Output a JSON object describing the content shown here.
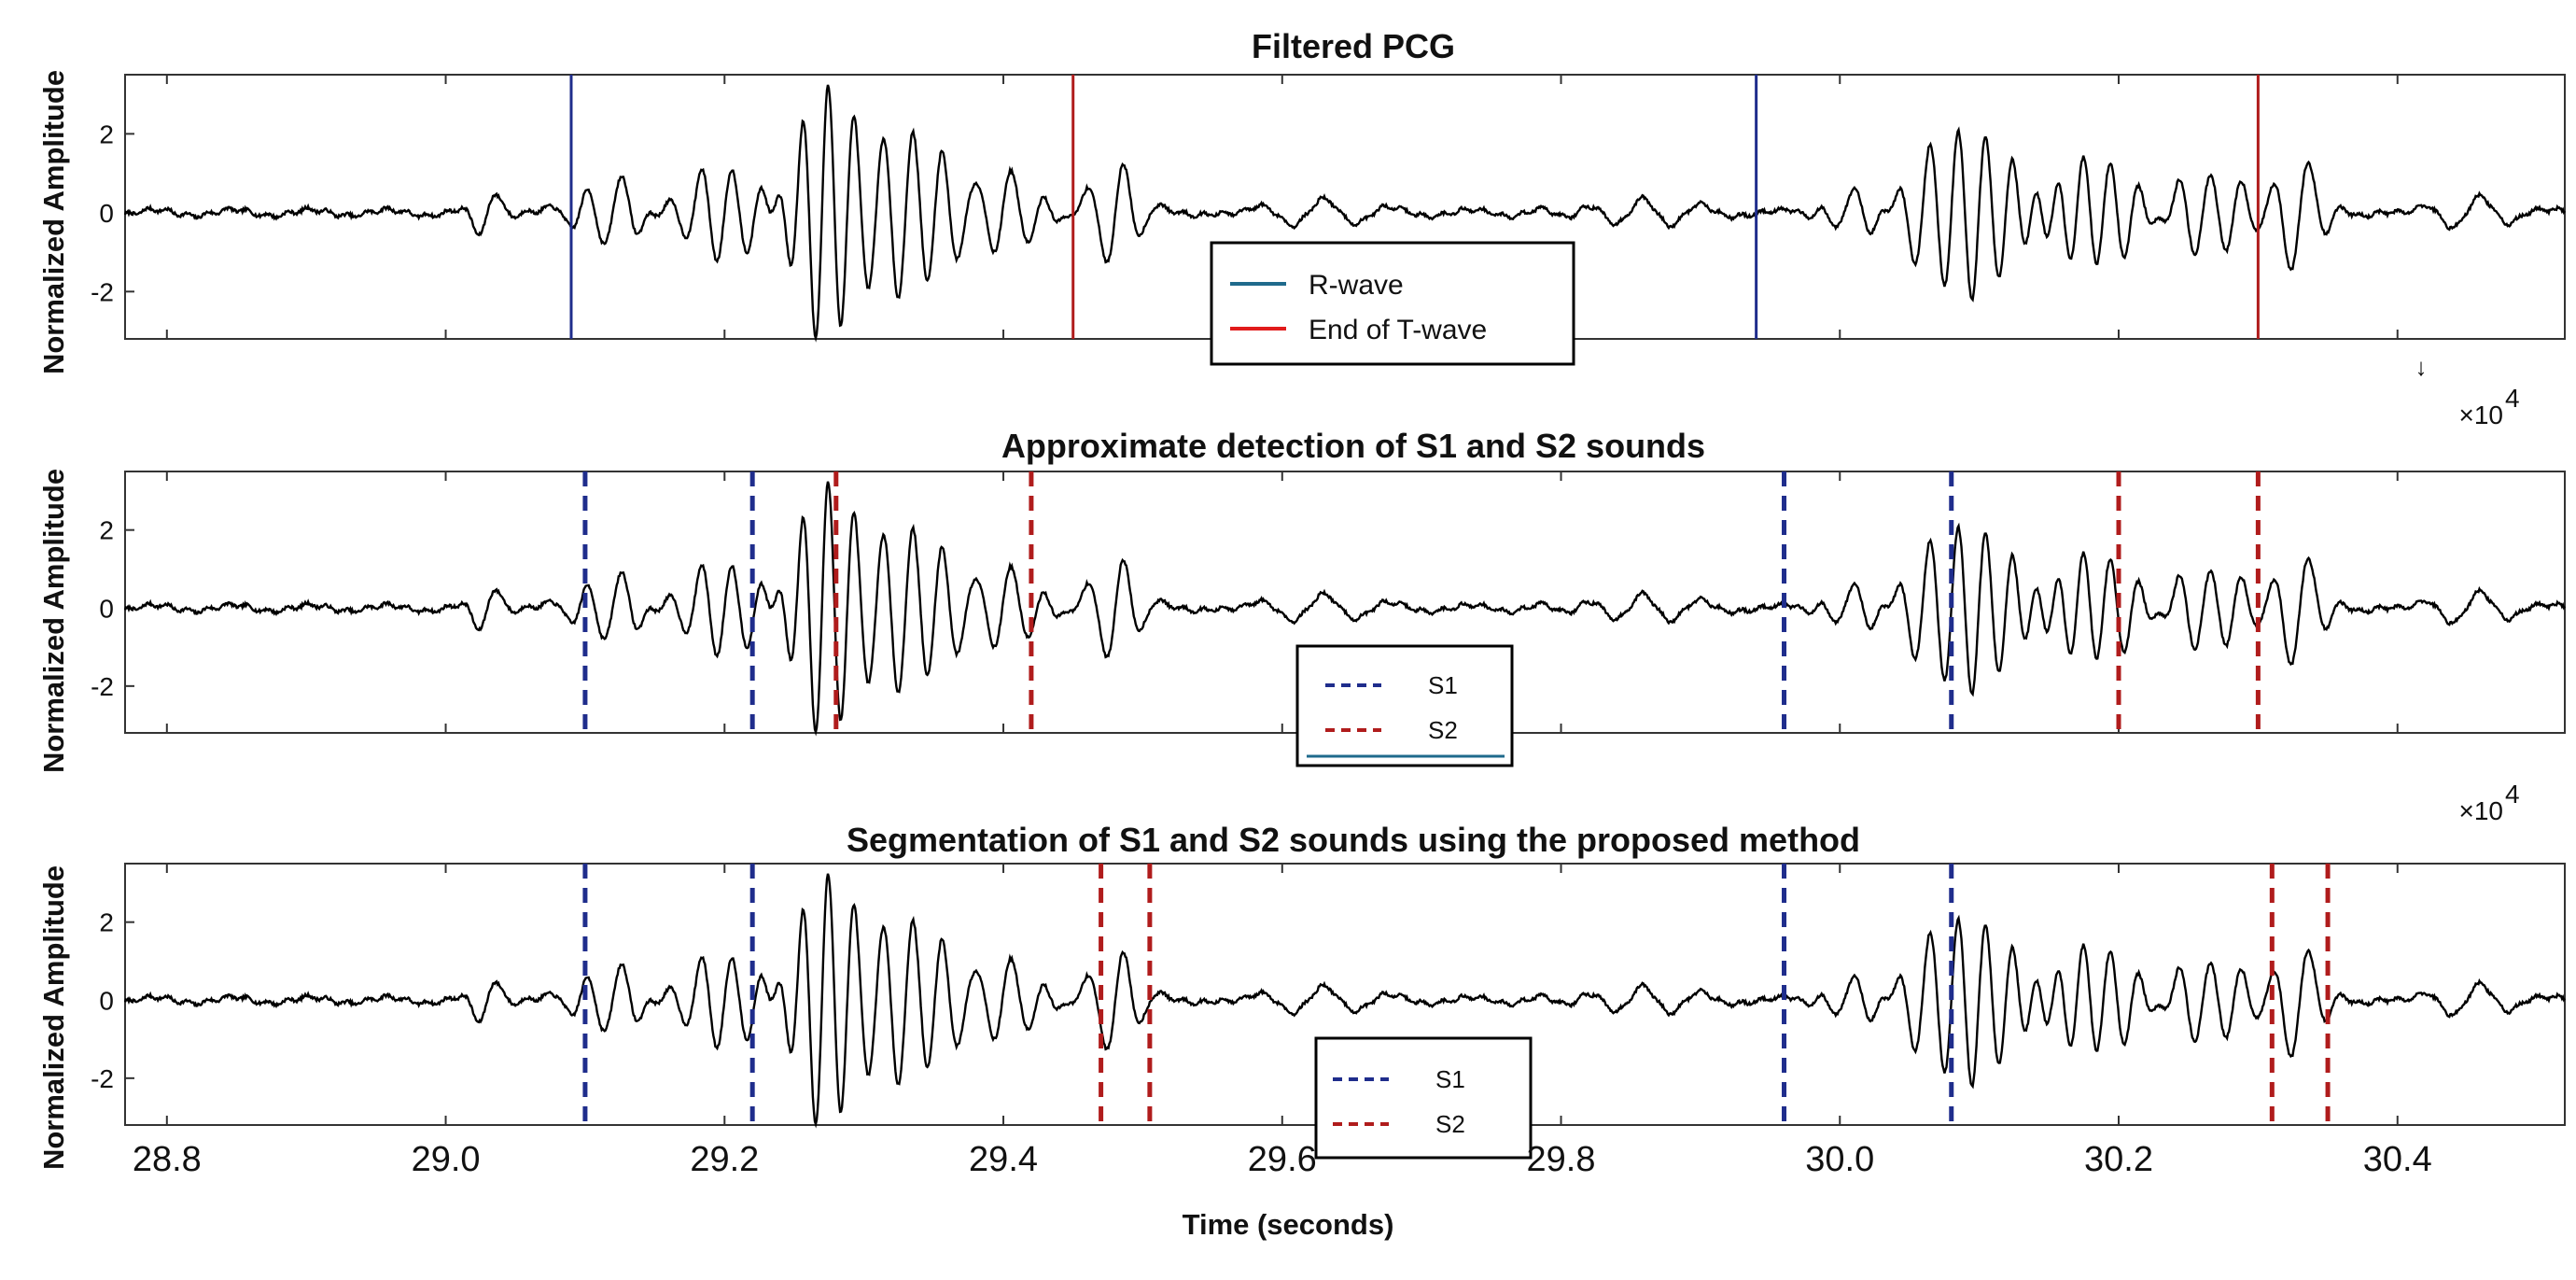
{
  "figure": {
    "xlabel": "Time (seconds)",
    "x_ticks": [
      "28.8",
      "29.0",
      "29.2",
      "29.4",
      "29.6",
      "29.8",
      "30.0",
      "30.2",
      "30.4"
    ],
    "y_ticks": [
      "2",
      "0",
      "-2"
    ],
    "exponent_base": "×10",
    "exponent_power": "4",
    "colors": {
      "blue": "#1f2d8c",
      "red": "#b01c1c",
      "trace": "#000000"
    }
  },
  "chart_data": [
    {
      "type": "line",
      "panel": "a",
      "title": "Filtered PCG",
      "ylabel": "Normalized Amplitude",
      "xlim": [
        28.77,
        30.52
      ],
      "ylim": [
        -3.2,
        3.5
      ],
      "series": [
        {
          "values_description_note": "",
          "x_range": [
            28.77,
            30.52
          ]
        }
      ],
      "markers": [
        {
          "name": "R-wave",
          "style": "solid",
          "color": "#1f2d8c",
          "x": [
            29.09,
            29.94
          ]
        },
        {
          "name": "End of T-wave",
          "style": "solid",
          "color": "#b01c1c",
          "x": [
            29.45,
            30.3
          ]
        }
      ],
      "legend": {
        "placement": "bottom-center",
        "entries": [
          "R-wave",
          "End of T-wave"
        ]
      }
    },
    {
      "type": "line",
      "panel": "b",
      "title": "Approximate detection of S1 and S2 sounds",
      "ylabel": "Normalized Amplitude",
      "xlim": [
        28.77,
        30.52
      ],
      "ylim": [
        -3.2,
        3.5
      ],
      "markers": [
        {
          "name": "S1",
          "style": "dashed",
          "color": "#1f2d8c",
          "x": [
            29.1,
            29.22,
            29.96,
            30.08
          ]
        },
        {
          "name": "S2",
          "style": "dashed",
          "color": "#b01c1c",
          "x": [
            29.28,
            29.42,
            30.2,
            30.3
          ]
        }
      ],
      "legend": {
        "placement": "bottom-center",
        "entries": [
          "S1",
          "S2"
        ]
      }
    },
    {
      "type": "line",
      "panel": "c",
      "title": "Segmentation of S1 and S2 sounds using the proposed method",
      "ylabel": "Normalized Amplitude",
      "xlim": [
        28.77,
        30.52
      ],
      "ylim": [
        -3.2,
        3.5
      ],
      "markers": [
        {
          "name": "S1",
          "style": "dashed",
          "color": "#1f2d8c",
          "x": [
            29.1,
            29.22,
            29.96,
            30.08
          ]
        },
        {
          "name": "S2",
          "style": "dashed",
          "color": "#b01c1c",
          "x": [
            29.47,
            29.505,
            30.31,
            30.35
          ]
        }
      ],
      "legend": {
        "placement": "bottom-center",
        "entries": [
          "S1",
          "S2"
        ]
      }
    }
  ]
}
